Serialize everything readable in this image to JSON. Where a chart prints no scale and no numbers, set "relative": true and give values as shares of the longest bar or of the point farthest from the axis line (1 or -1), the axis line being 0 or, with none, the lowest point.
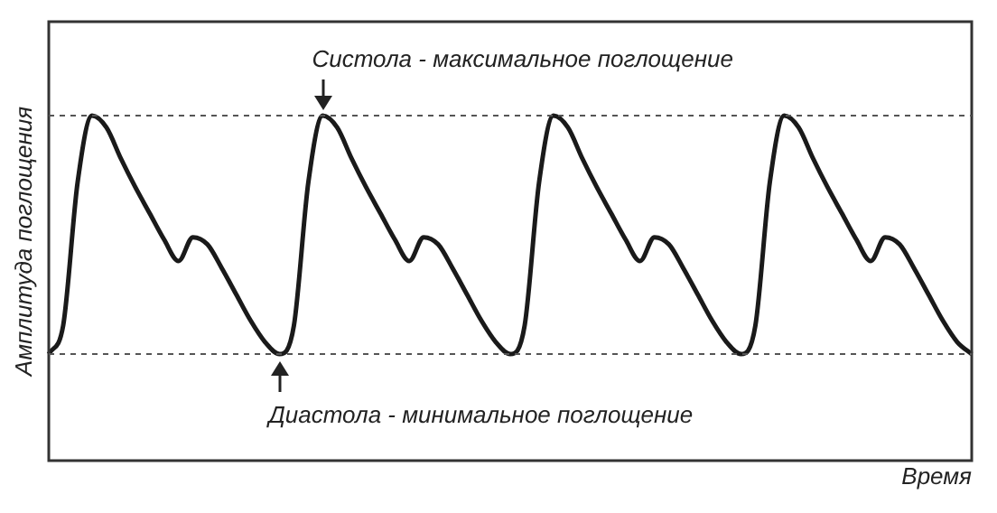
{
  "chart_data": {
    "type": "line",
    "relative": true,
    "xlabel": "Время",
    "ylabel": "Амплитуда поглощения",
    "categories": [
      null,
      null,
      null,
      null,
      null,
      null,
      null,
      null,
      null,
      null,
      null,
      null,
      null,
      null,
      null,
      null,
      null,
      null,
      null,
      null,
      null,
      null,
      null,
      null,
      null,
      null,
      null,
      null,
      null,
      null,
      null,
      null,
      null,
      null,
      null,
      null,
      null,
      null,
      null,
      null,
      null,
      null,
      null,
      null,
      null,
      null,
      null,
      null,
      null,
      null,
      null,
      null,
      null,
      null,
      null,
      null,
      null,
      null,
      null,
      null,
      null,
      null,
      null,
      null,
      null
    ],
    "series": [
      {
        "color": "#1a1a1a",
        "values": [
          0,
          0.12,
          0.72,
          1,
          0.95,
          0.82,
          0.7,
          0.59,
          0.48,
          0.39,
          0.49,
          0.46,
          0.36,
          0.25,
          0.14,
          0.05,
          0,
          0.12,
          0.72,
          1,
          0.95,
          0.82,
          0.7,
          0.59,
          0.48,
          0.39,
          0.49,
          0.46,
          0.36,
          0.25,
          0.14,
          0.05,
          0,
          0.12,
          0.72,
          1,
          0.95,
          0.82,
          0.7,
          0.59,
          0.48,
          0.39,
          0.49,
          0.46,
          0.36,
          0.25,
          0.14,
          0.05,
          0,
          0.12,
          0.72,
          1,
          0.95,
          0.82,
          0.7,
          0.59,
          0.48,
          0.39,
          0.49,
          0.46,
          0.36,
          0.25,
          0.14,
          0.05,
          0
        ]
      }
    ],
    "ref_lines": [
      {
        "axis": "y",
        "value": 1,
        "label": "Систола - максимальное поглощение",
        "line_style": "dashed",
        "color": "#555555"
      },
      {
        "axis": "y",
        "value": 0,
        "label": "Диастола - минимальное поглощение",
        "line_style": "dashed",
        "color": "#555555"
      }
    ],
    "legend": false,
    "marker": "none",
    "line_style": "solid"
  }
}
